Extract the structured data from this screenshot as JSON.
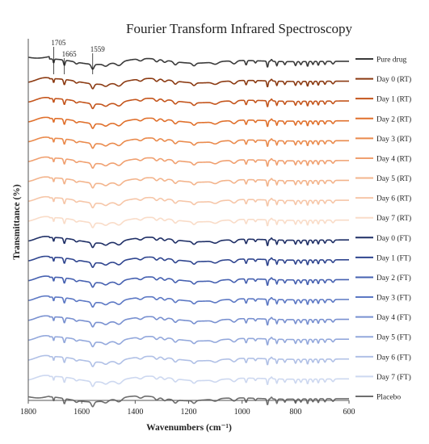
{
  "chart_data": {
    "type": "line",
    "title": "Fourier Transform Infrared Spectroscopy",
    "xlabel": "Wavenumbers (cm⁻¹)",
    "ylabel": "Transmittance (%)",
    "xlim": [
      1800,
      600
    ],
    "x_reversed": true,
    "x_ticks": [
      1800,
      1600,
      1400,
      1200,
      1000,
      800,
      600
    ],
    "y_ticks": [],
    "grid": false,
    "legend_position": "right",
    "layout": "stacked offset spectra",
    "annotations": [
      {
        "text": "1705",
        "x": 1705
      },
      {
        "text": "1665",
        "x": 1665
      },
      {
        "text": "1559",
        "x": 1559
      }
    ],
    "series": [
      {
        "name": "Pure drug",
        "color": "#3a3a3a"
      },
      {
        "name": "Day 0 (RT)",
        "color": "#8b3a12"
      },
      {
        "name": "Day 1 (RT)",
        "color": "#c4551c"
      },
      {
        "name": "Day 2 (RT)",
        "color": "#e0702c"
      },
      {
        "name": "Day 3 (RT)",
        "color": "#ea8a4c"
      },
      {
        "name": "Day 4 (RT)",
        "color": "#f0a070"
      },
      {
        "name": "Day 5 (RT)",
        "color": "#f3b48c"
      },
      {
        "name": "Day 6 (RT)",
        "color": "#f6c6a8"
      },
      {
        "name": "Day 7 (RT)",
        "color": "#f9dcc8"
      },
      {
        "name": "Day 0 (FT)",
        "color": "#1f2f66"
      },
      {
        "name": "Day 1 (FT)",
        "color": "#2f458f"
      },
      {
        "name": "Day 2 (FT)",
        "color": "#4560b0"
      },
      {
        "name": "Day 3 (FT)",
        "color": "#5c78c4"
      },
      {
        "name": "Day 4 (FT)",
        "color": "#7890d0"
      },
      {
        "name": "Day 5 (FT)",
        "color": "#93a8dc"
      },
      {
        "name": "Day 6 (FT)",
        "color": "#b0c0e6"
      },
      {
        "name": "Day 7 (FT)",
        "color": "#cdd8f0"
      },
      {
        "name": "Placebo",
        "color": "#6e6e6e"
      }
    ]
  }
}
